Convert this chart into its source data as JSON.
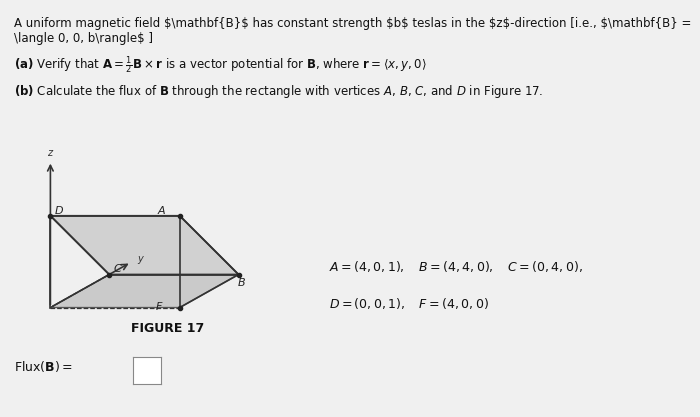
{
  "title_line": "A uniform magnetic field **B** has constant strength *b* teslas in the *z*-direction [i.e., **B** = ⟨0, 0, *b*⟩ ]",
  "part_a": "(a) Verify that A = ½B × r is a vector potential for B, where r = ⟨x, y, 0⟩",
  "part_b": "(b) Calculate the flux of B through the rectangle with vertices A, B, C, and D in Figure 17.",
  "figure_label": "FIGURE 17",
  "coords_line1": "A = (4, 0, 1),    B = (4, 4, 0),    C = (0, 4, 0),",
  "coords_line2": "D = (0, 0, 1),    F = (4, 0, 0)",
  "flux_label": "Flux(B) =",
  "bg_color": "#e8e8e8",
  "figure_bg": "#d8d8d8",
  "text_color": "#111111",
  "axis_color": "#333333",
  "edge_color": "#222222",
  "face_color_light": "#e0e0e0",
  "face_color_shaded": "#b0b0b0"
}
